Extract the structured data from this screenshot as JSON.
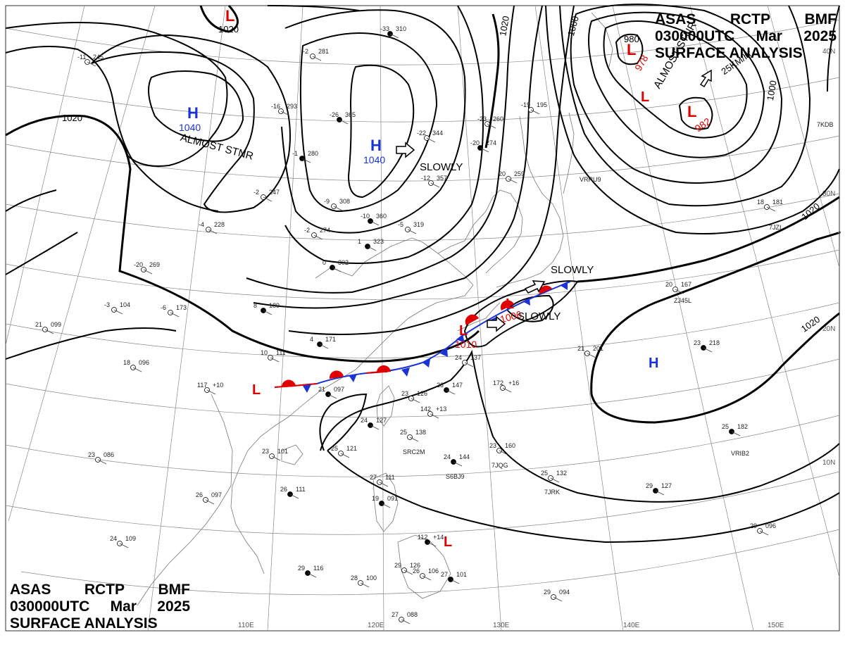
{
  "header": {
    "agency": "ASAS",
    "center": "RCTP",
    "source": "BMF",
    "time": "030000UTC",
    "month": "Mar",
    "year": "2025",
    "title": "SURFACE ANALYSIS"
  },
  "pressure_systems": [
    {
      "type": "L",
      "value": "",
      "color": "#e00000"
    },
    {
      "type": "H",
      "value": "1040",
      "color": "#1a33d6"
    },
    {
      "type": "H",
      "value": "1040",
      "color": "#1a33d6"
    },
    {
      "type": "L",
      "value": "978",
      "color": "#e00000"
    },
    {
      "type": "L",
      "value": "",
      "color": "#e00000"
    },
    {
      "type": "L",
      "value": "982",
      "color": "#e00000"
    },
    {
      "type": "L",
      "value": "1006",
      "color": "#e00000"
    },
    {
      "type": "L",
      "value": "1010",
      "color": "#e00000"
    },
    {
      "type": "L",
      "value": "",
      "color": "#e00000"
    },
    {
      "type": "H",
      "value": "",
      "color": "#1a33d6"
    },
    {
      "type": "L",
      "value": "",
      "color": "#e00000"
    }
  ],
  "isobar_labels": [
    "1020",
    "1020",
    "1020",
    "1020",
    "1020",
    "1000",
    "1000",
    "980"
  ],
  "motion_notes": [
    "ALMOST STNR",
    "SLOWLY",
    "ALMOST STNR",
    "25KM/hr",
    "SLOWLY",
    "SLOWLY"
  ],
  "grid_labels": {
    "longitudes": [
      "110E",
      "120E",
      "130E",
      "140E",
      "150E"
    ],
    "latitudes": [
      "40N",
      "30N",
      "20N",
      "10N"
    ]
  },
  "station_plots": [
    {
      "temp": "-33",
      "pres": "310"
    },
    {
      "temp": "-11",
      "pres": "245"
    },
    {
      "temp": "-16",
      "pres": "293"
    },
    {
      "temp": "-26",
      "pres": "365"
    },
    {
      "temp": "-22",
      "pres": "344"
    },
    {
      "temp": "-12",
      "pres": "357"
    },
    {
      "temp": "-1",
      "pres": "280"
    },
    {
      "temp": "-2",
      "pres": "247"
    },
    {
      "temp": "-9",
      "pres": "308"
    },
    {
      "temp": "-10",
      "pres": "360"
    },
    {
      "temp": "-4",
      "pres": "228"
    },
    {
      "temp": "-2",
      "pres": "274"
    },
    {
      "temp": "1",
      "pres": "323"
    },
    {
      "temp": "-5",
      "pres": "319"
    },
    {
      "temp": "-20",
      "pres": "269"
    },
    {
      "temp": "0",
      "pres": "302"
    },
    {
      "temp": "-3",
      "pres": "104"
    },
    {
      "temp": "-6",
      "pres": "173"
    },
    {
      "temp": "8",
      "pres": "189"
    },
    {
      "temp": "21",
      "pres": "099"
    },
    {
      "temp": "18",
      "pres": "096"
    },
    {
      "temp": "4",
      "pres": "171"
    },
    {
      "temp": "10",
      "pres": "111"
    },
    {
      "temp": "117",
      "pres": "+10"
    },
    {
      "temp": "21",
      "pres": "097"
    },
    {
      "temp": "23",
      "pres": "126"
    },
    {
      "temp": "24",
      "pres": "137"
    },
    {
      "temp": "23",
      "pres": "147"
    },
    {
      "temp": "172",
      "pres": "+16"
    },
    {
      "temp": "21",
      "pres": "201"
    },
    {
      "temp": "23",
      "pres": "218"
    },
    {
      "temp": "20",
      "pres": "167"
    },
    {
      "temp": "18",
      "pres": "181"
    },
    {
      "temp": "25",
      "pres": "182"
    },
    {
      "temp": "23",
      "pres": "160"
    },
    {
      "temp": "25",
      "pres": "121"
    },
    {
      "temp": "24",
      "pres": "144"
    },
    {
      "temp": "23",
      "pres": "101"
    },
    {
      "temp": "26",
      "pres": "097"
    },
    {
      "temp": "26",
      "pres": "111"
    },
    {
      "temp": "23",
      "pres": "086"
    },
    {
      "temp": "24",
      "pres": "109"
    },
    {
      "temp": "29",
      "pres": "116"
    },
    {
      "temp": "28",
      "pres": "100"
    },
    {
      "temp": "27",
      "pres": "111"
    },
    {
      "temp": "19",
      "pres": "091"
    },
    {
      "temp": "29",
      "pres": "126"
    },
    {
      "temp": "26",
      "pres": "106"
    },
    {
      "temp": "27",
      "pres": "101"
    },
    {
      "temp": "27",
      "pres": "088"
    },
    {
      "temp": "29",
      "pres": "094"
    },
    {
      "temp": "29",
      "pres": "127"
    },
    {
      "temp": "29",
      "pres": "096"
    },
    {
      "temp": "25",
      "pres": "132"
    },
    {
      "temp": "24",
      "pres": "127"
    },
    {
      "temp": "25",
      "pres": "138"
    },
    {
      "temp": "142",
      "pres": "+13"
    },
    {
      "temp": "112",
      "pres": "+14"
    },
    {
      "temp": "20",
      "pres": "259"
    },
    {
      "temp": "-23",
      "pres": "260"
    },
    {
      "temp": "-20",
      "pres": "274"
    },
    {
      "temp": "-19",
      "pres": "195"
    },
    {
      "temp": "-2",
      "pres": "281"
    }
  ],
  "ship_ids": [
    "7JQG",
    "7JRK",
    "S6BJ9",
    "SRC2M",
    "VRIB2",
    "ZJ45L",
    "7JZI",
    "VRRU9",
    "7KDB"
  ]
}
